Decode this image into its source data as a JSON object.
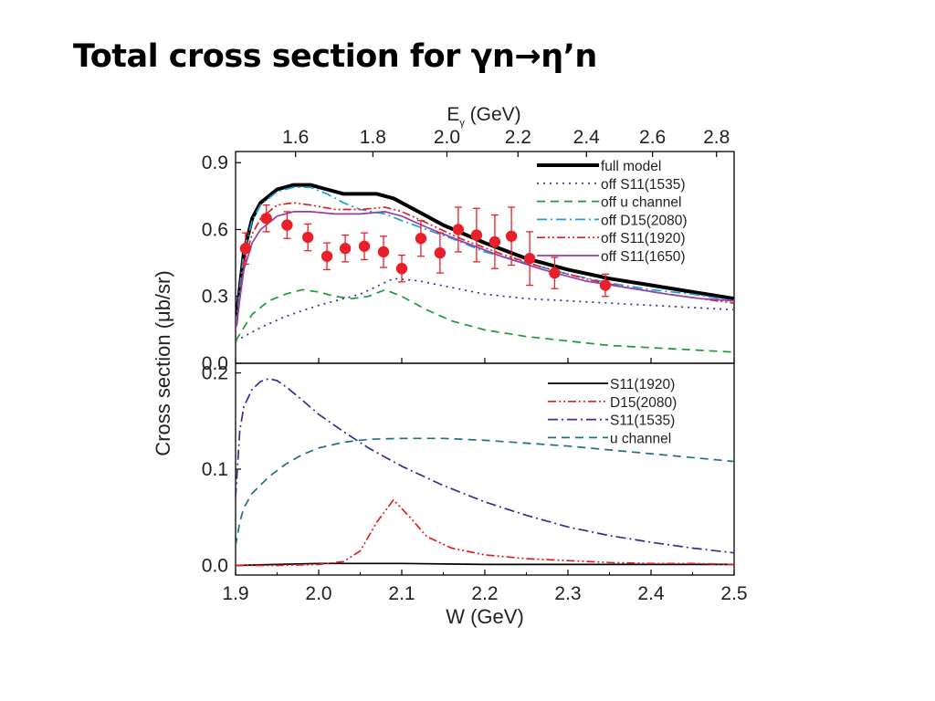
{
  "slide": {
    "title_pre": "Total cross section for γn",
    "arrow": "→",
    "title_post": "η’n"
  },
  "chart_data": [
    {
      "type": "line",
      "panel": "top",
      "top_axis_label": "E",
      "top_axis_label_sub": "γ",
      "top_axis_unit": "(GeV)",
      "top_ticks": [
        "1.6",
        "1.8",
        "2.0",
        "2.2",
        "2.4",
        "2.6",
        "2.8"
      ],
      "top_tick_values": [
        1.6,
        1.8,
        2.0,
        2.2,
        2.4,
        2.6,
        2.8
      ],
      "ylabel": "Cross section (μb/sr)",
      "ylim": [
        0,
        0.95
      ],
      "xlim": [
        1.9,
        2.5
      ],
      "yticks": [
        "0.0",
        "0.3",
        "0.6",
        "0.9"
      ],
      "ytick_values": [
        0,
        0.3,
        0.6,
        0.9
      ],
      "legend_position": "top-right",
      "series": [
        {
          "name": "full model",
          "color": "#000000",
          "style": "solid-thick",
          "x": [
            1.9,
            1.91,
            1.92,
            1.93,
            1.95,
            1.97,
            1.99,
            2.01,
            2.03,
            2.05,
            2.07,
            2.09,
            2.12,
            2.15,
            2.2,
            2.25,
            2.3,
            2.35,
            2.4,
            2.45,
            2.5
          ],
          "y": [
            0.17,
            0.5,
            0.65,
            0.72,
            0.78,
            0.8,
            0.8,
            0.78,
            0.76,
            0.76,
            0.76,
            0.74,
            0.68,
            0.62,
            0.54,
            0.47,
            0.42,
            0.38,
            0.35,
            0.32,
            0.29
          ]
        },
        {
          "name": "off S11(1535)",
          "color": "#303090",
          "style": "dotted",
          "x": [
            1.9,
            1.93,
            1.96,
            2.0,
            2.05,
            2.09,
            2.12,
            2.16,
            2.2,
            2.25,
            2.3,
            2.35,
            2.4,
            2.45,
            2.5
          ],
          "y": [
            0.1,
            0.16,
            0.21,
            0.26,
            0.31,
            0.38,
            0.37,
            0.34,
            0.31,
            0.29,
            0.28,
            0.27,
            0.26,
            0.25,
            0.24
          ]
        },
        {
          "name": "off u channel",
          "color": "#1a9a3a",
          "style": "dashed",
          "x": [
            1.9,
            1.92,
            1.94,
            1.96,
            1.98,
            2.0,
            2.02,
            2.04,
            2.06,
            2.08,
            2.1,
            2.13,
            2.16,
            2.2,
            2.25,
            2.3,
            2.35,
            2.4,
            2.45,
            2.5
          ],
          "y": [
            0.1,
            0.22,
            0.28,
            0.31,
            0.33,
            0.32,
            0.3,
            0.29,
            0.3,
            0.33,
            0.3,
            0.24,
            0.19,
            0.15,
            0.12,
            0.1,
            0.08,
            0.07,
            0.06,
            0.05
          ]
        },
        {
          "name": "off D15(2080)",
          "color": "#1aa0d8",
          "style": "dash-dot",
          "x": [
            1.9,
            1.91,
            1.92,
            1.93,
            1.95,
            1.97,
            1.99,
            2.01,
            2.03,
            2.05,
            2.08,
            2.1,
            2.13,
            2.16,
            2.2,
            2.25,
            2.3,
            2.35,
            2.4,
            2.45,
            2.5
          ],
          "y": [
            0.17,
            0.5,
            0.64,
            0.71,
            0.77,
            0.79,
            0.79,
            0.76,
            0.72,
            0.69,
            0.67,
            0.64,
            0.6,
            0.56,
            0.5,
            0.45,
            0.4,
            0.36,
            0.33,
            0.31,
            0.28
          ]
        },
        {
          "name": "off S11(1920)",
          "color": "#e02020",
          "style": "dash-dot-dot",
          "x": [
            1.9,
            1.91,
            1.92,
            1.93,
            1.95,
            1.97,
            1.99,
            2.02,
            2.05,
            2.08,
            2.1,
            2.13,
            2.17,
            2.22,
            2.27,
            2.32,
            2.37,
            2.42,
            2.46,
            2.5
          ],
          "y": [
            0.16,
            0.45,
            0.58,
            0.65,
            0.71,
            0.72,
            0.71,
            0.69,
            0.69,
            0.7,
            0.68,
            0.63,
            0.56,
            0.49,
            0.43,
            0.38,
            0.34,
            0.31,
            0.29,
            0.27
          ]
        },
        {
          "name": "off S11(1650)",
          "color": "#9040b0",
          "style": "solid",
          "x": [
            1.9,
            1.91,
            1.92,
            1.93,
            1.95,
            1.97,
            1.99,
            2.02,
            2.05,
            2.08,
            2.1,
            2.13,
            2.17,
            2.22,
            2.27,
            2.32,
            2.37,
            2.42,
            2.46,
            2.5
          ],
          "y": [
            0.15,
            0.42,
            0.54,
            0.6,
            0.66,
            0.68,
            0.68,
            0.67,
            0.67,
            0.68,
            0.66,
            0.61,
            0.55,
            0.48,
            0.42,
            0.37,
            0.34,
            0.31,
            0.29,
            0.28
          ]
        }
      ],
      "data_points": {
        "color": "#e8202a",
        "points": [
          {
            "x": 1.912,
            "y": 0.515,
            "err": 0.07
          },
          {
            "x": 1.937,
            "y": 0.65,
            "err": 0.06
          },
          {
            "x": 1.962,
            "y": 0.62,
            "err": 0.06
          },
          {
            "x": 1.987,
            "y": 0.565,
            "err": 0.06
          },
          {
            "x": 2.01,
            "y": 0.48,
            "err": 0.06
          },
          {
            "x": 2.032,
            "y": 0.515,
            "err": 0.06
          },
          {
            "x": 2.055,
            "y": 0.525,
            "err": 0.06
          },
          {
            "x": 2.078,
            "y": 0.5,
            "err": 0.07
          },
          {
            "x": 2.1,
            "y": 0.425,
            "err": 0.06
          },
          {
            "x": 2.123,
            "y": 0.56,
            "err": 0.08
          },
          {
            "x": 2.146,
            "y": 0.495,
            "err": 0.09
          },
          {
            "x": 2.168,
            "y": 0.6,
            "err": 0.1
          },
          {
            "x": 2.19,
            "y": 0.575,
            "err": 0.12
          },
          {
            "x": 2.212,
            "y": 0.545,
            "err": 0.12
          },
          {
            "x": 2.232,
            "y": 0.57,
            "err": 0.13
          },
          {
            "x": 2.254,
            "y": 0.47,
            "err": 0.12
          },
          {
            "x": 2.284,
            "y": 0.405,
            "err": 0.07
          },
          {
            "x": 2.345,
            "y": 0.35,
            "err": 0.05
          }
        ]
      }
    },
    {
      "type": "line",
      "panel": "bottom",
      "xlabel": "W (GeV)",
      "xlim": [
        1.9,
        2.5
      ],
      "xticks": [
        "1.9",
        "2.0",
        "2.1",
        "2.2",
        "2.3",
        "2.4",
        "2.5"
      ],
      "xtick_values": [
        1.9,
        2.0,
        2.1,
        2.2,
        2.3,
        2.4,
        2.5
      ],
      "ylim": [
        -0.01,
        0.21
      ],
      "yticks": [
        "0.0",
        "0.1",
        "0.2"
      ],
      "ytick_values": [
        0,
        0.1,
        0.2
      ],
      "legend_position": "top-right",
      "series": [
        {
          "name": "S11(1920)",
          "color": "#000000",
          "style": "solid",
          "x": [
            1.9,
            1.95,
            2.0,
            2.05,
            2.1,
            2.2,
            2.3,
            2.4,
            2.5
          ],
          "y": [
            0.0,
            0.001,
            0.002,
            0.002,
            0.002,
            0.001,
            0.001,
            0.001,
            0.001
          ]
        },
        {
          "name": "D15(2080)",
          "color": "#e02020",
          "style": "dash-dot-dot",
          "x": [
            1.9,
            1.95,
            2.0,
            2.03,
            2.05,
            2.07,
            2.09,
            2.11,
            2.13,
            2.16,
            2.2,
            2.25,
            2.3,
            2.35,
            2.4,
            2.45,
            2.5
          ],
          "y": [
            0.0,
            0.0,
            0.001,
            0.004,
            0.015,
            0.045,
            0.068,
            0.05,
            0.03,
            0.018,
            0.011,
            0.007,
            0.005,
            0.003,
            0.002,
            0.002,
            0.001
          ]
        },
        {
          "name": "S11(1535)",
          "color": "#303090",
          "style": "dash-dot",
          "x": [
            1.9,
            1.905,
            1.91,
            1.92,
            1.93,
            1.94,
            1.95,
            1.96,
            1.98,
            2.0,
            2.03,
            2.06,
            2.1,
            2.15,
            2.2,
            2.25,
            2.3,
            2.35,
            2.4,
            2.45,
            2.5
          ],
          "y": [
            0.07,
            0.14,
            0.165,
            0.183,
            0.191,
            0.194,
            0.192,
            0.186,
            0.172,
            0.157,
            0.139,
            0.122,
            0.103,
            0.083,
            0.066,
            0.052,
            0.04,
            0.031,
            0.024,
            0.018,
            0.013
          ]
        },
        {
          "name": "u channel",
          "color": "#207080",
          "style": "dashed",
          "x": [
            1.9,
            1.905,
            1.91,
            1.92,
            1.94,
            1.96,
            1.98,
            2.0,
            2.03,
            2.06,
            2.1,
            2.15,
            2.2,
            2.25,
            2.3,
            2.35,
            2.4,
            2.45,
            2.5
          ],
          "y": [
            0.02,
            0.045,
            0.06,
            0.075,
            0.092,
            0.105,
            0.115,
            0.122,
            0.128,
            0.131,
            0.132,
            0.132,
            0.13,
            0.127,
            0.124,
            0.12,
            0.116,
            0.112,
            0.108
          ]
        }
      ]
    }
  ]
}
